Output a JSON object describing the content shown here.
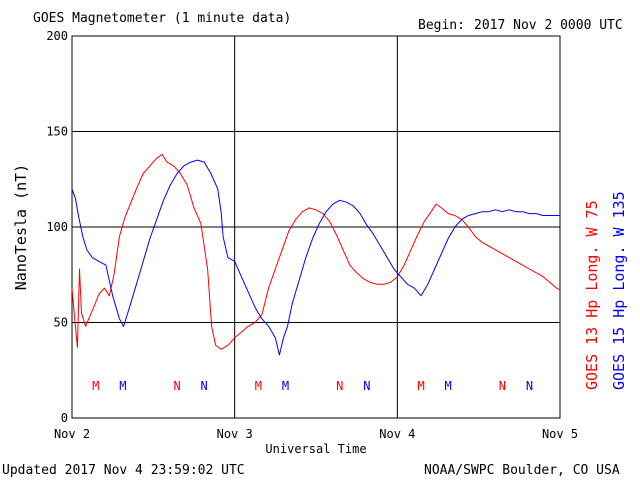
{
  "header": {
    "title": "GOES Magnetometer (1 minute data)",
    "begin_label": "Begin:",
    "begin_value": "2017 Nov 2 0000 UTC"
  },
  "footer": {
    "updated": "Updated 2017 Nov  4 23:59:02 UTC",
    "credit": "NOAA/SWPC Boulder, CO USA"
  },
  "chart_data": {
    "type": "line",
    "ylabel": "NanoTesla (nT)",
    "xlabel": "Universal Time",
    "ylim": [
      0,
      200
    ],
    "yticks": [
      "0",
      "50",
      "100",
      "150",
      "200"
    ],
    "xlim_hours": [
      0,
      72
    ],
    "xtick_labels": [
      "Nov 2",
      "Nov 3",
      "Nov 4",
      "Nov 5"
    ],
    "grid": true,
    "series": [
      {
        "name": "GOES 13 Hp  Long. W 75",
        "color": "#ff0000",
        "points": [
          [
            0,
            68
          ],
          [
            0.4,
            52
          ],
          [
            0.8,
            37
          ],
          [
            1.1,
            78
          ],
          [
            1.4,
            55
          ],
          [
            2,
            48
          ],
          [
            2.6,
            53
          ],
          [
            3.2,
            58
          ],
          [
            4,
            65
          ],
          [
            4.8,
            68
          ],
          [
            5.5,
            64
          ],
          [
            6.2,
            75
          ],
          [
            7,
            95
          ],
          [
            7.8,
            105
          ],
          [
            8.6,
            112
          ],
          [
            9.5,
            120
          ],
          [
            10.5,
            128
          ],
          [
            11.5,
            132
          ],
          [
            12.5,
            136
          ],
          [
            13.3,
            138
          ],
          [
            14,
            134
          ],
          [
            15,
            132
          ],
          [
            16,
            128
          ],
          [
            17,
            122
          ],
          [
            18,
            110
          ],
          [
            19,
            102
          ],
          [
            20,
            78
          ],
          [
            20.6,
            48
          ],
          [
            21.2,
            38
          ],
          [
            22,
            36
          ],
          [
            23,
            38
          ],
          [
            24,
            42
          ],
          [
            25,
            45
          ],
          [
            26,
            48
          ],
          [
            27,
            50
          ],
          [
            28,
            54
          ],
          [
            29,
            68
          ],
          [
            30,
            78
          ],
          [
            31,
            88
          ],
          [
            32,
            98
          ],
          [
            33,
            104
          ],
          [
            34,
            108
          ],
          [
            35,
            110
          ],
          [
            36,
            109
          ],
          [
            37,
            107
          ],
          [
            38,
            103
          ],
          [
            39,
            96
          ],
          [
            40,
            88
          ],
          [
            41,
            80
          ],
          [
            42,
            76
          ],
          [
            43,
            73
          ],
          [
            44,
            71
          ],
          [
            45,
            70
          ],
          [
            46,
            70
          ],
          [
            47,
            71
          ],
          [
            48,
            74
          ],
          [
            49,
            80
          ],
          [
            50,
            88
          ],
          [
            51,
            96
          ],
          [
            52,
            103
          ],
          [
            53,
            108
          ],
          [
            53.7,
            112
          ],
          [
            54.5,
            110
          ],
          [
            55.5,
            107
          ],
          [
            56.5,
            106
          ],
          [
            57.5,
            104
          ],
          [
            58.5,
            100
          ],
          [
            59.5,
            95
          ],
          [
            60.5,
            92
          ],
          [
            61.5,
            90
          ],
          [
            62.5,
            88
          ],
          [
            63.5,
            86
          ],
          [
            64.5,
            84
          ],
          [
            65.5,
            82
          ],
          [
            66.5,
            80
          ],
          [
            67.5,
            78
          ],
          [
            68.5,
            76
          ],
          [
            69.5,
            74
          ],
          [
            70.5,
            71
          ],
          [
            71.5,
            68
          ],
          [
            72,
            67
          ]
        ],
        "markers": [
          {
            "letter": "M",
            "hour": 3.5
          },
          {
            "letter": "N",
            "hour": 15.5
          },
          {
            "letter": "M",
            "hour": 27.5
          },
          {
            "letter": "N",
            "hour": 39.5
          },
          {
            "letter": "M",
            "hour": 51.5
          },
          {
            "letter": "N",
            "hour": 63.5
          }
        ]
      },
      {
        "name": "GOES 15 Hp  Long. W 135",
        "color": "#0000ff",
        "points": [
          [
            0,
            120
          ],
          [
            0.5,
            115
          ],
          [
            1,
            105
          ],
          [
            1.6,
            95
          ],
          [
            2.2,
            88
          ],
          [
            3,
            84
          ],
          [
            4,
            82
          ],
          [
            5,
            80
          ],
          [
            6,
            64
          ],
          [
            7,
            52
          ],
          [
            7.6,
            48
          ],
          [
            8.5,
            58
          ],
          [
            9.5,
            70
          ],
          [
            10.5,
            82
          ],
          [
            11.5,
            94
          ],
          [
            12.5,
            104
          ],
          [
            13.5,
            114
          ],
          [
            14.5,
            122
          ],
          [
            15.5,
            128
          ],
          [
            16.5,
            132
          ],
          [
            17.5,
            134
          ],
          [
            18.5,
            135
          ],
          [
            19.5,
            134
          ],
          [
            20.5,
            128
          ],
          [
            21.5,
            120
          ],
          [
            22,
            108
          ],
          [
            22.3,
            95
          ],
          [
            23,
            84
          ],
          [
            24,
            82
          ],
          [
            25,
            74
          ],
          [
            26,
            66
          ],
          [
            27,
            58
          ],
          [
            28,
            52
          ],
          [
            29,
            48
          ],
          [
            30,
            42
          ],
          [
            30.6,
            33
          ],
          [
            31.2,
            42
          ],
          [
            31.8,
            48
          ],
          [
            32.5,
            60
          ],
          [
            33.5,
            72
          ],
          [
            34.5,
            84
          ],
          [
            35.5,
            94
          ],
          [
            36.5,
            102
          ],
          [
            37.5,
            108
          ],
          [
            38.5,
            112
          ],
          [
            39.5,
            114
          ],
          [
            40.5,
            113
          ],
          [
            41.5,
            111
          ],
          [
            42.5,
            107
          ],
          [
            43.5,
            101
          ],
          [
            44.5,
            96
          ],
          [
            45.5,
            90
          ],
          [
            46.5,
            84
          ],
          [
            47.5,
            78
          ],
          [
            48.5,
            74
          ],
          [
            49.5,
            70
          ],
          [
            50.5,
            68
          ],
          [
            51.5,
            64
          ],
          [
            52.5,
            70
          ],
          [
            53.5,
            78
          ],
          [
            54.5,
            86
          ],
          [
            55.5,
            94
          ],
          [
            56.5,
            100
          ],
          [
            57.5,
            104
          ],
          [
            58.5,
            106
          ],
          [
            59.5,
            107
          ],
          [
            60.5,
            108
          ],
          [
            61.5,
            108
          ],
          [
            62.5,
            109
          ],
          [
            63.5,
            108
          ],
          [
            64.5,
            109
          ],
          [
            65.5,
            108
          ],
          [
            66.5,
            108
          ],
          [
            67.5,
            107
          ],
          [
            68.5,
            107
          ],
          [
            69.5,
            106
          ],
          [
            70.5,
            106
          ],
          [
            71.5,
            106
          ],
          [
            72,
            106
          ]
        ],
        "markers": [
          {
            "letter": "M",
            "hour": 7.5
          },
          {
            "letter": "N",
            "hour": 19.5
          },
          {
            "letter": "M",
            "hour": 31.5
          },
          {
            "letter": "N",
            "hour": 43.5
          },
          {
            "letter": "M",
            "hour": 55.5
          },
          {
            "letter": "N",
            "hour": 67.5
          }
        ]
      }
    ]
  }
}
